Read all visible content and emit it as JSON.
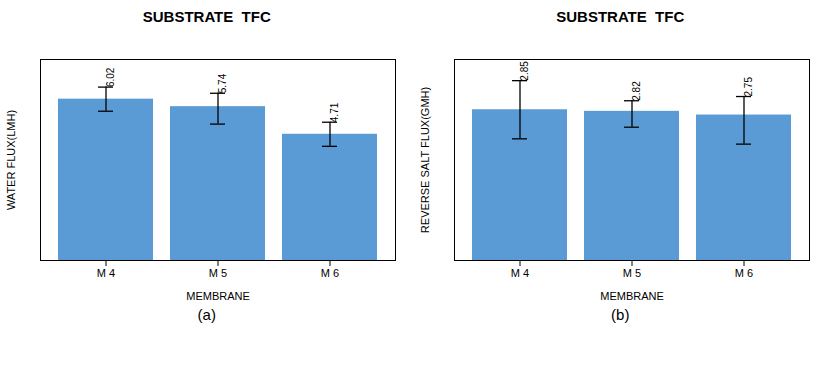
{
  "chart_data": [
    {
      "type": "bar",
      "title": "SUBSTRATE  TFC",
      "categories": [
        "M 4",
        "M 5",
        "M 6"
      ],
      "values": [
        6.02,
        5.74,
        4.71
      ],
      "errors_up": [
        0.45,
        0.5,
        0.45
      ],
      "errors_down": [
        0.45,
        0.65,
        0.45
      ],
      "xlabel": "MEMBRANE",
      "ylabel": "WATER FLUX(LMH)",
      "color": "#5B9BD5",
      "ylim": [
        0,
        7.5
      ],
      "data_labels": true,
      "tick_labels": "x",
      "annotation": "(a)"
    },
    {
      "type": "bar",
      "title": "SUBSTRATE  TFC",
      "categories": [
        "M 4",
        "M 5",
        "M 6"
      ],
      "values": [
        2.85,
        2.82,
        2.75
      ],
      "errors_up": [
        0.55,
        0.2,
        0.35
      ],
      "errors_down": [
        0.55,
        0.3,
        0.55
      ],
      "xlabel": "MEMBRANE",
      "ylabel": "REVERSE SALT FLUX(GMH)",
      "color": "#5B9BD5",
      "ylim": [
        0,
        3.8
      ],
      "data_labels": true,
      "tick_labels": "x",
      "annotation": "(b)"
    }
  ]
}
